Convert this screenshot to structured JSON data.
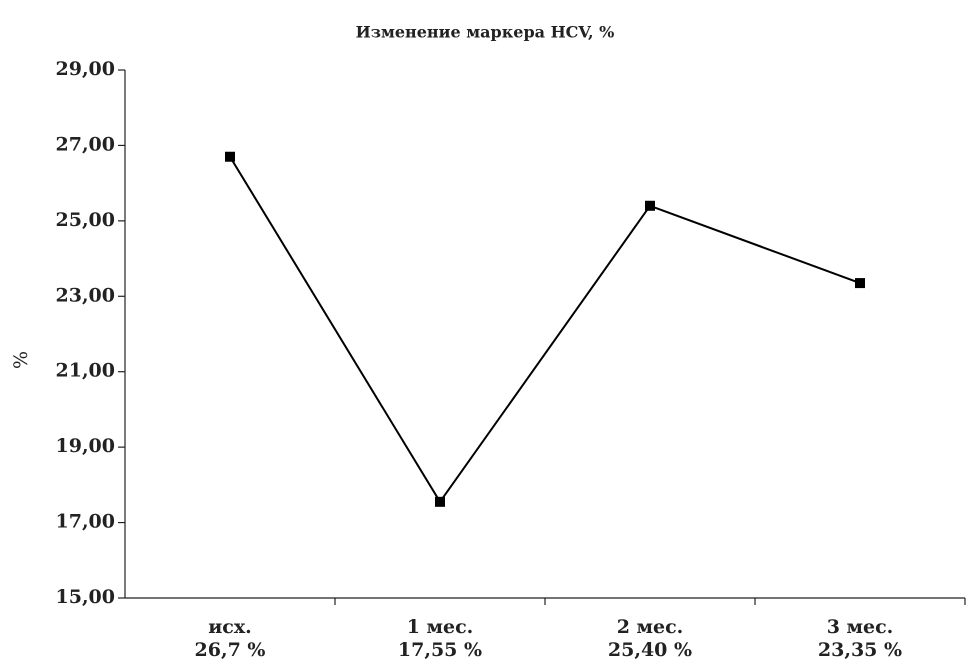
{
  "chart_data": {
    "type": "line",
    "title": "Изменение маркера HCV, %",
    "ylabel": "%",
    "categories": [
      "исх.",
      "1 мес.",
      "2 мес.",
      "3 мес."
    ],
    "series": [
      {
        "name": "HCV",
        "color": "#000000",
        "values": [
          26.7,
          17.55,
          25.4,
          23.35
        ],
        "value_labels": [
          "26,7 %",
          "17,55 %",
          "25,40 %",
          "23,35 %"
        ]
      }
    ],
    "ylim": [
      15,
      29
    ],
    "yticks": [
      {
        "value": 15,
        "label": "15,00"
      },
      {
        "value": 17,
        "label": "17,00"
      },
      {
        "value": 19,
        "label": "19,00"
      },
      {
        "value": 21,
        "label": "21,00"
      },
      {
        "value": 23,
        "label": "23,00"
      },
      {
        "value": 25,
        "label": "25,00"
      },
      {
        "value": 27,
        "label": "27,00"
      },
      {
        "value": 29,
        "label": "29,00"
      }
    ],
    "grid": false
  }
}
